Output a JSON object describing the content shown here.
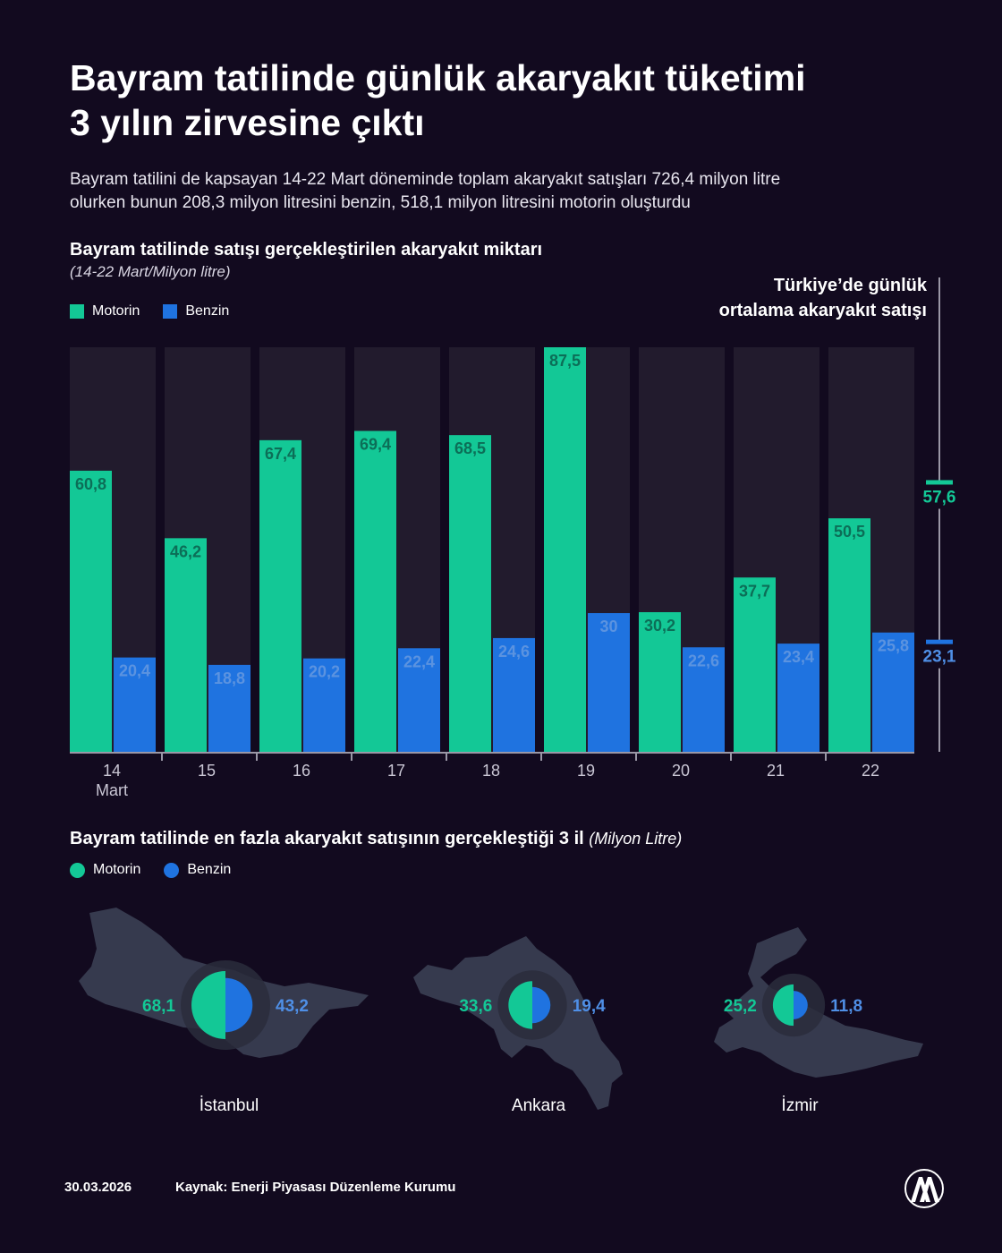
{
  "header": {
    "title_line1": "Bayram tatilinde günlük akaryakıt tüketimi",
    "title_line2": "3 yılın zirvesine çıktı",
    "subtitle_line1": "Bayram tatilini de kapsayan 14-22 Mart döneminde toplam akaryakıt satışları 726,4 milyon litre",
    "subtitle_line2": "olurken bunun 208,3 milyon litresini benzin, 518,1 milyon litresini motorin oluşturdu"
  },
  "colors": {
    "motorin": "#13c896",
    "benzin": "#1f73e0",
    "background": "#120a1f",
    "track": "#221b2d",
    "map": "#363a4e"
  },
  "chart_data": {
    "type": "bar",
    "title": "Bayram tatilinde satışı gerçekleştirilen akaryakıt miktarı",
    "subtitle": "(14-22 Mart/Milyon litre)",
    "categories": [
      "14",
      "15",
      "16",
      "17",
      "18",
      "19",
      "20",
      "21",
      "22"
    ],
    "first_category_sublabel": "Mart",
    "series": [
      {
        "name": "Motorin",
        "values": [
          60.8,
          46.2,
          67.4,
          69.4,
          68.5,
          87.5,
          30.2,
          37.7,
          50.5
        ],
        "labels": [
          "60,8",
          "46,2",
          "67,4",
          "69,4",
          "68,5",
          "87,5",
          "30,2",
          "37,7",
          "50,5"
        ]
      },
      {
        "name": "Benzin",
        "values": [
          20.4,
          18.8,
          20.2,
          22.4,
          24.6,
          30,
          22.6,
          23.4,
          25.8
        ],
        "labels": [
          "20,4",
          "18,8",
          "20,2",
          "22,4",
          "24,6",
          "30",
          "22,6",
          "23,4",
          "25,8"
        ]
      }
    ],
    "ylim": [
      0,
      87.5
    ],
    "average": {
      "title_line1": "Türkiye’de günlük",
      "title_line2": "ortalama akaryakıt satışı",
      "motorin": 57.6,
      "motorin_label": "57,6",
      "benzin": 23.1,
      "benzin_label": "23,1"
    },
    "legend": [
      "Motorin",
      "Benzin"
    ]
  },
  "maps": {
    "title": "Bayram tatilinde en fazla akaryakıt satışının gerçekleştiği 3 il",
    "unit": "(Milyon Litre)",
    "legend": [
      "Motorin",
      "Benzin"
    ],
    "cities": [
      {
        "name": "İstanbul",
        "motorin": 68.1,
        "motorin_label": "68,1",
        "benzin": 43.2,
        "benzin_label": "43,2"
      },
      {
        "name": "Ankara",
        "motorin": 33.6,
        "motorin_label": "33,6",
        "benzin": 19.4,
        "benzin_label": "19,4"
      },
      {
        "name": "İzmir",
        "motorin": 25.2,
        "motorin_label": "25,2",
        "benzin": 11.8,
        "benzin_label": "11,8"
      }
    ]
  },
  "footer": {
    "date": "30.03.2026",
    "source": "Kaynak: Enerji Piyasası Düzenleme Kurumu",
    "logo_text": "AA"
  }
}
